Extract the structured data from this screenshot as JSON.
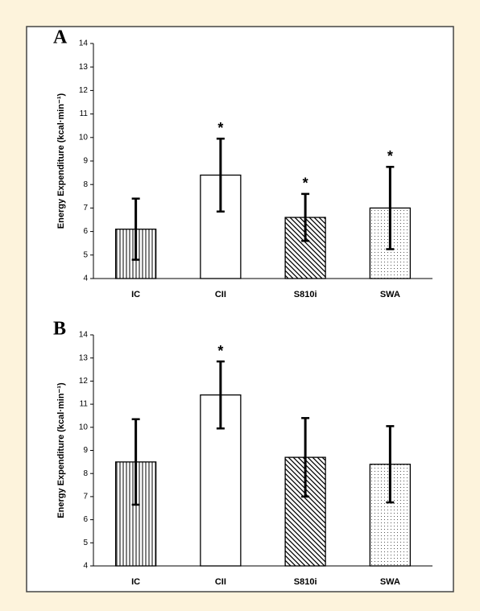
{
  "chart_data": [
    {
      "type": "bar",
      "panel": "A",
      "ylabel": "Energy Expenditure (kcal·min⁻¹)",
      "categories": [
        "IC",
        "CII",
        "S810i",
        "SWA"
      ],
      "values": [
        6.1,
        8.4,
        6.6,
        7.0
      ],
      "errors": [
        1.3,
        1.55,
        1.0,
        1.75
      ],
      "significance": [
        null,
        "*",
        "*",
        "*"
      ],
      "patterns": [
        "vertical",
        "none",
        "diagonal",
        "dots"
      ],
      "color": "#000000",
      "ylim": [
        4,
        14
      ],
      "yticks": [
        4,
        5,
        6,
        7,
        8,
        9,
        10,
        11,
        12,
        13,
        14
      ]
    },
    {
      "type": "bar",
      "panel": "B",
      "ylabel": "Energy Expenditure (kcal·min⁻¹)",
      "categories": [
        "IC",
        "CII",
        "S810i",
        "SWA"
      ],
      "values": [
        8.5,
        11.4,
        8.7,
        8.4
      ],
      "errors": [
        1.85,
        1.45,
        1.7,
        1.65
      ],
      "significance": [
        null,
        "*",
        null,
        null
      ],
      "patterns": [
        "vertical",
        "none",
        "diagonal",
        "dots"
      ],
      "color": "#000000",
      "ylim": [
        4,
        14
      ],
      "yticks": [
        4,
        5,
        6,
        7,
        8,
        9,
        10,
        11,
        12,
        13,
        14
      ]
    }
  ]
}
